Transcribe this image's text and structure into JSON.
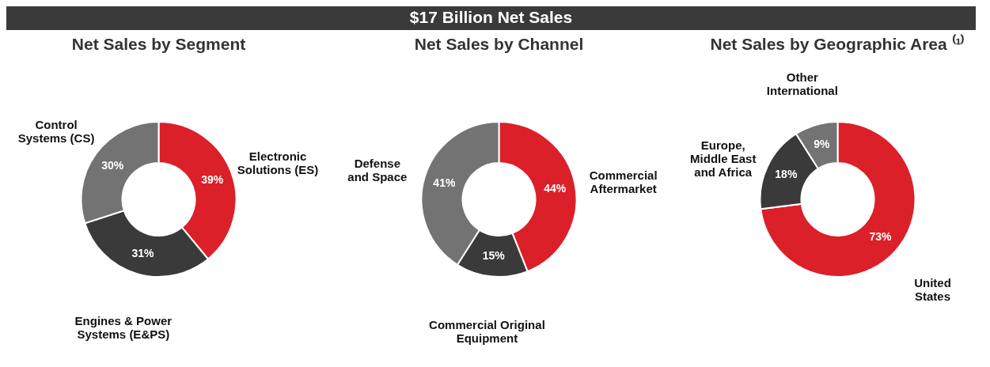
{
  "chart_data": [
    {
      "type": "other",
      "title": "$17 Billion Net Sales"
    },
    {
      "type": "donut",
      "title": "Net Sales by Segment",
      "categories": [
        "Electronic\nSolutions (ES)",
        "Engines & Power\nSystems (E&PS)",
        "Control\nSystems (CS)"
      ],
      "values": [
        39,
        31,
        30
      ],
      "value_labels": [
        "39%",
        "31%",
        "30%"
      ],
      "colors": [
        "#db2029",
        "#3a3a3a",
        "#737373"
      ]
    },
    {
      "type": "donut",
      "title": "Net Sales by Channel",
      "categories": [
        "Commercial\nAftermarket",
        "Commercial Original\nEquipment",
        "Defense\nand Space"
      ],
      "values": [
        44,
        15,
        41
      ],
      "value_labels": [
        "44%",
        "15%",
        "41%"
      ],
      "colors": [
        "#db2029",
        "#3a3a3a",
        "#737373"
      ]
    },
    {
      "type": "donut",
      "title": "Net Sales by Geographic Area ⁽¹⁾",
      "categories": [
        "United\nStates",
        "Europe,\nMiddle East\nand Africa",
        "Other\nInternational"
      ],
      "values": [
        73,
        18,
        9
      ],
      "value_labels": [
        "73%",
        "18%",
        "9%"
      ],
      "colors": [
        "#db2029",
        "#3a3a3a",
        "#737373"
      ]
    }
  ]
}
